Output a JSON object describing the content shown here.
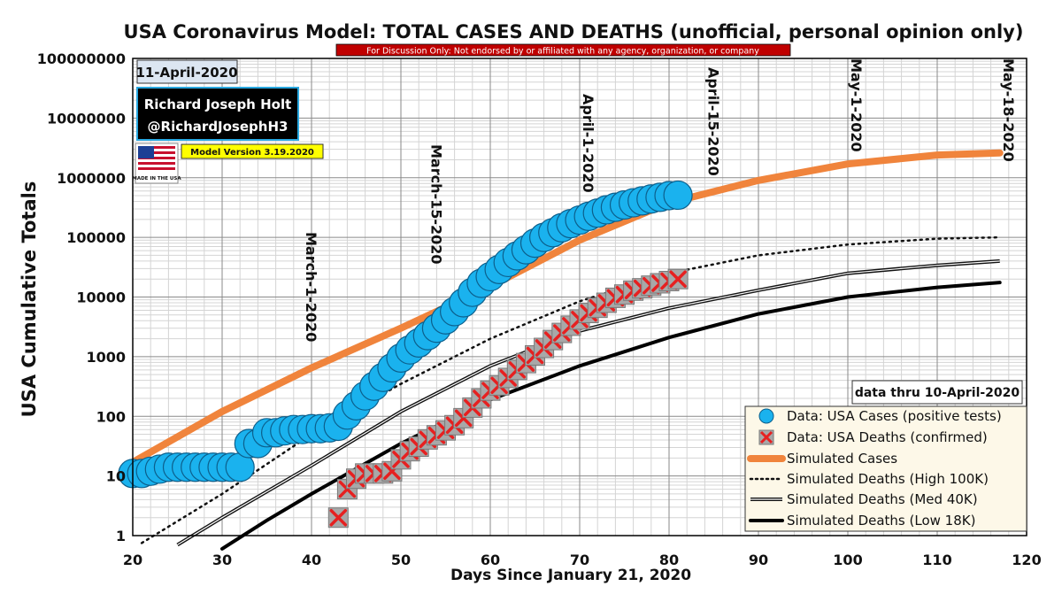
{
  "chart_data": {
    "type": "scatter",
    "title": "USA Coronavirus Model: TOTAL CASES AND DEATHS (unofficial, personal opinion only)",
    "disclaimer": "For Discussion Only: Not endorsed by or affiliated with any agency, organization, or company",
    "date_badge": "11-April-2020",
    "author_name": "Richard Joseph Holt",
    "author_handle": "@RichardJosephH3",
    "flag_text": "MADE IN THE USA",
    "model_version": "Model Version 3.19.2020",
    "data_thru": "data thru 10-April-2020",
    "xlabel": "Days Since January 21, 2020",
    "ylabel": "USA Cumulative Totals",
    "xlim": [
      20,
      120
    ],
    "ylim": [
      1,
      100000000
    ],
    "yscale": "log",
    "grid": true,
    "legend_position": "bottom-right",
    "xticks": [
      "20",
      "30",
      "40",
      "50",
      "60",
      "70",
      "80",
      "90",
      "100",
      "110",
      "120"
    ],
    "yticks": [
      "1",
      "10",
      "100",
      "1000",
      "10000",
      "100000",
      "1000000",
      "10000000",
      "100000000"
    ],
    "date_markers": [
      {
        "x": 40,
        "label": "March-1-2020"
      },
      {
        "x": 54,
        "label": "March-15-2020"
      },
      {
        "x": 71,
        "label": "April-1-2020"
      },
      {
        "x": 85,
        "label": "April-15-2020"
      },
      {
        "x": 101,
        "label": "May-1-2020"
      },
      {
        "x": 118,
        "label": "May-18-2020"
      }
    ],
    "series": [
      {
        "name": "Data: USA Cases (positive tests)",
        "kind": "markers-circle",
        "color": "#1ab2ee",
        "x": [
          20,
          21,
          22,
          23,
          24,
          25,
          26,
          27,
          28,
          29,
          30,
          31,
          32,
          33,
          34,
          35,
          36,
          37,
          38,
          39,
          40,
          41,
          42,
          43,
          44,
          45,
          46,
          47,
          48,
          49,
          50,
          51,
          52,
          53,
          54,
          55,
          56,
          57,
          58,
          59,
          60,
          61,
          62,
          63,
          64,
          65,
          66,
          67,
          68,
          69,
          70,
          71,
          72,
          73,
          74,
          75,
          76,
          77,
          78,
          79,
          80,
          81
        ],
        "y": [
          11,
          11,
          12,
          13,
          14,
          14,
          14,
          14,
          14,
          14,
          14,
          14,
          14,
          35,
          35,
          53,
          53,
          57,
          60,
          60,
          62,
          62,
          64,
          68,
          105,
          150,
          220,
          320,
          450,
          650,
          950,
          1300,
          1700,
          2250,
          3000,
          4150,
          5700,
          8000,
          12000,
          17000,
          22000,
          29000,
          38000,
          49000,
          62000,
          80000,
          100000,
          120000,
          145000,
          170000,
          195000,
          225000,
          255000,
          290000,
          320000,
          350000,
          380000,
          410000,
          440000,
          470000,
          500000,
          510000
        ]
      },
      {
        "name": "Data: USA Deaths (confirmed)",
        "kind": "markers-x",
        "color": "#e62020",
        "x": [
          43,
          44,
          45,
          46,
          47,
          48,
          49,
          50,
          51,
          52,
          53,
          54,
          55,
          56,
          57,
          58,
          59,
          60,
          61,
          62,
          63,
          64,
          65,
          66,
          67,
          68,
          69,
          70,
          71,
          72,
          73,
          74,
          75,
          76,
          77,
          78,
          79,
          80,
          81
        ],
        "y": [
          2,
          6,
          9,
          11,
          11,
          11,
          12,
          19,
          26,
          31,
          41,
          48,
          58,
          71,
          93,
          140,
          200,
          270,
          330,
          440,
          600,
          780,
          1050,
          1400,
          1900,
          2500,
          3300,
          4200,
          5400,
          6600,
          8000,
          9700,
          11000,
          12800,
          14000,
          15500,
          17000,
          18500,
          20000
        ]
      },
      {
        "name": "Simulated Cases",
        "kind": "line",
        "color": "#f0843c",
        "width": 8,
        "x": [
          20,
          30,
          40,
          50,
          60,
          70,
          80,
          90,
          100,
          110,
          117
        ],
        "y": [
          17,
          120,
          650,
          3000,
          15000,
          90000,
          380000,
          900000,
          1700000,
          2400000,
          2600000
        ]
      },
      {
        "name": "Simulated Deaths (High 100K)",
        "kind": "dotted",
        "color": "#111111",
        "width": 2.5,
        "x": [
          21,
          30,
          40,
          50,
          60,
          70,
          80,
          90,
          100,
          110,
          117
        ],
        "y": [
          0.75,
          5,
          50,
          350,
          2000,
          8500,
          25000,
          50000,
          76000,
          95000,
          100000
        ]
      },
      {
        "name": "Simulated Deaths (Med 40K)",
        "kind": "double",
        "color": "#111111",
        "width": 1.5,
        "x": [
          25,
          30,
          40,
          50,
          60,
          70,
          80,
          90,
          100,
          110,
          117
        ],
        "y": [
          0.7,
          2,
          15,
          120,
          700,
          2700,
          6500,
          13000,
          25000,
          34000,
          40000
        ]
      },
      {
        "name": "Simulated Deaths (Low 18K)",
        "kind": "line",
        "color": "#000000",
        "width": 4,
        "x": [
          30,
          35,
          40,
          50,
          60,
          70,
          80,
          90,
          100,
          110,
          117
        ],
        "y": [
          0.6,
          1.8,
          5,
          35,
          190,
          700,
          2100,
          5200,
          10000,
          14500,
          17500
        ]
      }
    ]
  }
}
